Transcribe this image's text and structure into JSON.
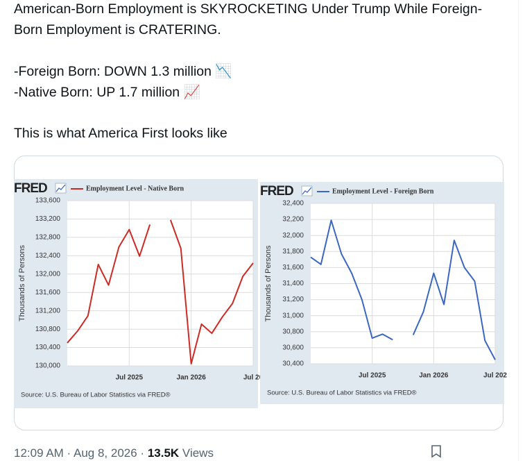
{
  "tweet": {
    "lines": [
      "American-Born Employment is SKYROCKETING Under Trump While Foreign-Born Employment is CRATERING.",
      "-Foreign Born: DOWN 1.3 million 📉",
      "-Native Born: UP 1.7 million 📈",
      "This is what America First looks like"
    ],
    "timestamp": "12:09 AM · Aug 8, 2026 ·",
    "views": "13.5K",
    "views_label": "Views"
  },
  "chart_data": [
    {
      "type": "line",
      "logo": "FRED",
      "ylabel": "Thousands of Persons",
      "source": "Source: U.S. Bureau of Labor Statistics via FRED®",
      "categories": [
        null,
        null,
        null,
        null,
        null,
        null,
        "Jul 2025",
        null,
        null,
        null,
        null,
        null,
        "Jan 2026",
        null,
        null,
        null,
        null,
        null,
        "Jul 20"
      ],
      "series": [
        {
          "name": "Employment Level - Native Born",
          "color": "#cc2a22",
          "values": [
            130500,
            130760,
            131090,
            132210,
            131760,
            132590,
            132970,
            132390,
            133080,
            null,
            133180,
            132560,
            130045,
            130910,
            130710,
            131060,
            131360,
            131950,
            132240
          ]
        }
      ],
      "ylim": [
        130000,
        133600
      ],
      "yticks": [
        {
          "value": 130000,
          "label": "130,000"
        },
        {
          "value": 130400,
          "label": "130,400"
        },
        {
          "value": 130800,
          "label": "130,800"
        },
        {
          "value": 131200,
          "label": "131,200"
        },
        {
          "value": 131600,
          "label": "131,600"
        },
        {
          "value": 132000,
          "label": "132,000"
        },
        {
          "value": 132400,
          "label": "132,400"
        },
        {
          "value": 132800,
          "label": "132,800"
        },
        {
          "value": 133200,
          "label": "133,200"
        },
        {
          "value": 133600,
          "label": "133,600"
        }
      ],
      "grid": true
    },
    {
      "type": "line",
      "logo": "FRED",
      "ylabel": "Thousands of Persons",
      "source": "Source: U.S. Bureau of Labor Statistics via FRED®",
      "categories": [
        null,
        null,
        null,
        null,
        null,
        null,
        "Jul 2025",
        null,
        null,
        null,
        null,
        null,
        "Jan 2026",
        null,
        null,
        null,
        null,
        null,
        "Jul 202"
      ],
      "series": [
        {
          "name": "Employment Level - Foreign Born",
          "color": "#3a67c2",
          "values": [
            31730,
            31640,
            32190,
            31770,
            31530,
            31200,
            30720,
            30770,
            30700,
            null,
            30760,
            31050,
            31530,
            31140,
            31940,
            31600,
            31430,
            30690,
            30450
          ]
        }
      ],
      "ylim": [
        30400,
        32400
      ],
      "yticks": [
        {
          "value": 30400,
          "label": "30,400"
        },
        {
          "value": 30600,
          "label": "30,600"
        },
        {
          "value": 30800,
          "label": "30,800"
        },
        {
          "value": 31000,
          "label": "31,000"
        },
        {
          "value": 31200,
          "label": "31,200"
        },
        {
          "value": 31400,
          "label": "31,400"
        },
        {
          "value": 31600,
          "label": "31,600"
        },
        {
          "value": 31800,
          "label": "31,800"
        },
        {
          "value": 32000,
          "label": "32,000"
        },
        {
          "value": 32200,
          "label": "32,200"
        },
        {
          "value": 32400,
          "label": "32,400"
        }
      ],
      "grid": true
    }
  ]
}
